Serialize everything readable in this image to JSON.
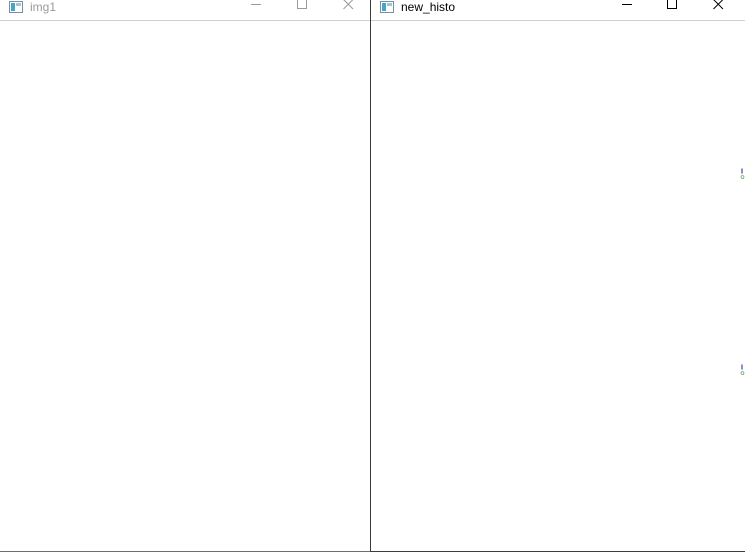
{
  "windows": [
    {
      "title": "img1",
      "active": false,
      "controls": [
        "minimize-icon",
        "maximize-icon",
        "close-icon"
      ]
    },
    {
      "title": "new_histo",
      "active": true,
      "controls": [
        "minimize-icon",
        "maximize-icon",
        "close-icon"
      ]
    }
  ],
  "colors": {
    "bar": "#1a5f8a",
    "title_inactive": "#9a9a9a",
    "title_active": "#000000",
    "background": "#ffffff"
  }
}
